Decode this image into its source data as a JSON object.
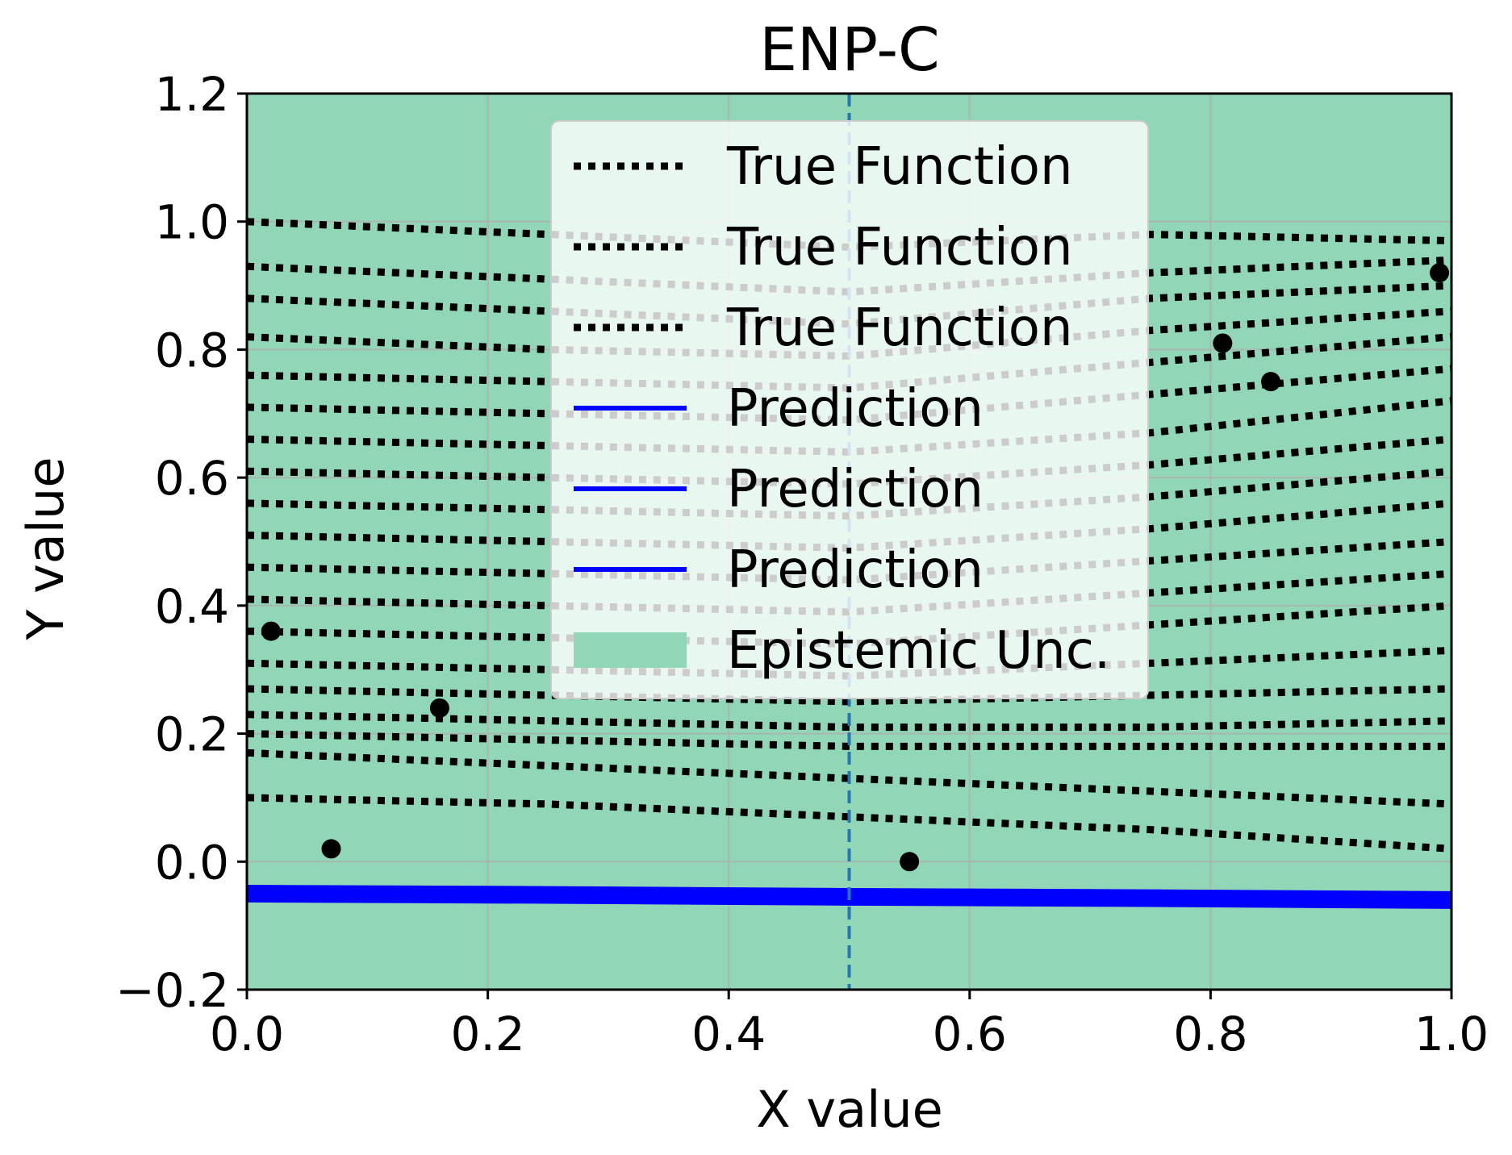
{
  "chart_data": {
    "type": "line",
    "title": "ENP-C",
    "xlabel": "X value",
    "ylabel": "Y value",
    "xlim": [
      0.0,
      1.0
    ],
    "ylim": [
      -0.2,
      1.2
    ],
    "xticks": [
      "0.0",
      "0.2",
      "0.4",
      "0.6",
      "0.8",
      "1.0"
    ],
    "yticks": [
      "−0.2",
      "0.0",
      "0.2",
      "0.4",
      "0.6",
      "0.8",
      "1.0",
      "1.2"
    ],
    "grid": true,
    "legend_position": "upper center",
    "vertical_line_x": 0.5,
    "colors": {
      "uncertainty": "#90d6b7",
      "true_function": "#000000",
      "prediction": "#0000ff",
      "vline": "#1f77b4",
      "grid": "#b0b0b0"
    },
    "legend": [
      {
        "label": "True Function",
        "kind": "dotted"
      },
      {
        "label": "True Function",
        "kind": "dotted"
      },
      {
        "label": "True Function",
        "kind": "dotted"
      },
      {
        "label": "Prediction",
        "kind": "solid"
      },
      {
        "label": "Prediction",
        "kind": "solid"
      },
      {
        "label": "Prediction",
        "kind": "solid"
      },
      {
        "label": "Epistemic Unc.",
        "kind": "patch"
      }
    ],
    "series": [
      {
        "role": "true_function",
        "x": [
          0.0,
          0.25,
          0.5,
          0.75,
          1.0
        ],
        "y": [
          1.0,
          0.98,
          0.96,
          0.98,
          0.97
        ]
      },
      {
        "role": "true_function",
        "x": [
          0.0,
          0.25,
          0.5,
          0.75,
          1.0
        ],
        "y": [
          0.93,
          0.91,
          0.89,
          0.92,
          0.94
        ]
      },
      {
        "role": "true_function",
        "x": [
          0.0,
          0.25,
          0.5,
          0.75,
          1.0
        ],
        "y": [
          0.88,
          0.86,
          0.84,
          0.88,
          0.9
        ]
      },
      {
        "role": "true_function",
        "x": [
          0.0,
          0.25,
          0.5,
          0.75,
          1.0
        ],
        "y": [
          0.82,
          0.8,
          0.79,
          0.83,
          0.86
        ]
      },
      {
        "role": "true_function",
        "x": [
          0.0,
          0.25,
          0.5,
          0.75,
          1.0
        ],
        "y": [
          0.76,
          0.75,
          0.74,
          0.78,
          0.82
        ]
      },
      {
        "role": "true_function",
        "x": [
          0.0,
          0.25,
          0.5,
          0.75,
          1.0
        ],
        "y": [
          0.71,
          0.7,
          0.69,
          0.73,
          0.77
        ]
      },
      {
        "role": "true_function",
        "x": [
          0.0,
          0.25,
          0.5,
          0.75,
          1.0
        ],
        "y": [
          0.66,
          0.65,
          0.64,
          0.67,
          0.72
        ]
      },
      {
        "role": "true_function",
        "x": [
          0.0,
          0.25,
          0.5,
          0.75,
          1.0
        ],
        "y": [
          0.61,
          0.6,
          0.59,
          0.62,
          0.66
        ]
      },
      {
        "role": "true_function",
        "x": [
          0.0,
          0.25,
          0.5,
          0.75,
          1.0
        ],
        "y": [
          0.56,
          0.55,
          0.54,
          0.57,
          0.61
        ]
      },
      {
        "role": "true_function",
        "x": [
          0.0,
          0.25,
          0.5,
          0.75,
          1.0
        ],
        "y": [
          0.51,
          0.5,
          0.49,
          0.52,
          0.56
        ]
      },
      {
        "role": "true_function",
        "x": [
          0.0,
          0.25,
          0.5,
          0.75,
          1.0
        ],
        "y": [
          0.46,
          0.45,
          0.44,
          0.47,
          0.5
        ]
      },
      {
        "role": "true_function",
        "x": [
          0.0,
          0.25,
          0.5,
          0.75,
          1.0
        ],
        "y": [
          0.41,
          0.4,
          0.39,
          0.42,
          0.45
        ]
      },
      {
        "role": "true_function",
        "x": [
          0.0,
          0.25,
          0.5,
          0.75,
          1.0
        ],
        "y": [
          0.36,
          0.35,
          0.34,
          0.37,
          0.4
        ]
      },
      {
        "role": "true_function",
        "x": [
          0.0,
          0.25,
          0.5,
          0.75,
          1.0
        ],
        "y": [
          0.31,
          0.3,
          0.29,
          0.31,
          0.33
        ]
      },
      {
        "role": "true_function",
        "x": [
          0.0,
          0.25,
          0.5,
          0.75,
          1.0
        ],
        "y": [
          0.27,
          0.26,
          0.25,
          0.26,
          0.27
        ]
      },
      {
        "role": "true_function",
        "x": [
          0.0,
          0.25,
          0.5,
          0.75,
          1.0
        ],
        "y": [
          0.23,
          0.22,
          0.21,
          0.21,
          0.22
        ]
      },
      {
        "role": "true_function",
        "x": [
          0.0,
          0.25,
          0.5,
          0.75,
          1.0
        ],
        "y": [
          0.2,
          0.19,
          0.18,
          0.18,
          0.18
        ]
      },
      {
        "role": "true_function",
        "x": [
          0.0,
          0.25,
          0.5,
          0.75,
          1.0
        ],
        "y": [
          0.17,
          0.15,
          0.13,
          0.11,
          0.09
        ]
      },
      {
        "role": "true_function",
        "x": [
          0.0,
          0.25,
          0.5,
          0.75,
          1.0
        ],
        "y": [
          0.1,
          0.09,
          0.07,
          0.05,
          0.02
        ]
      },
      {
        "role": "prediction",
        "x": [
          0.0,
          0.25,
          0.5,
          0.75,
          1.0
        ],
        "y": [
          -0.05,
          -0.05,
          -0.055,
          -0.057,
          -0.06
        ]
      },
      {
        "role": "prediction",
        "x": [
          0.0,
          0.25,
          0.5,
          0.75,
          1.0
        ],
        "y": [
          -0.045,
          -0.047,
          -0.05,
          -0.052,
          -0.055
        ]
      },
      {
        "role": "prediction",
        "x": [
          0.0,
          0.25,
          0.5,
          0.75,
          1.0
        ],
        "y": [
          -0.055,
          -0.057,
          -0.06,
          -0.062,
          -0.065
        ]
      }
    ],
    "points": [
      {
        "x": 0.02,
        "y": 0.36
      },
      {
        "x": 0.07,
        "y": 0.02
      },
      {
        "x": 0.16,
        "y": 0.24
      },
      {
        "x": 0.55,
        "y": 0.0
      },
      {
        "x": 0.81,
        "y": 0.81
      },
      {
        "x": 0.85,
        "y": 0.75
      },
      {
        "x": 0.99,
        "y": 0.92
      }
    ]
  }
}
